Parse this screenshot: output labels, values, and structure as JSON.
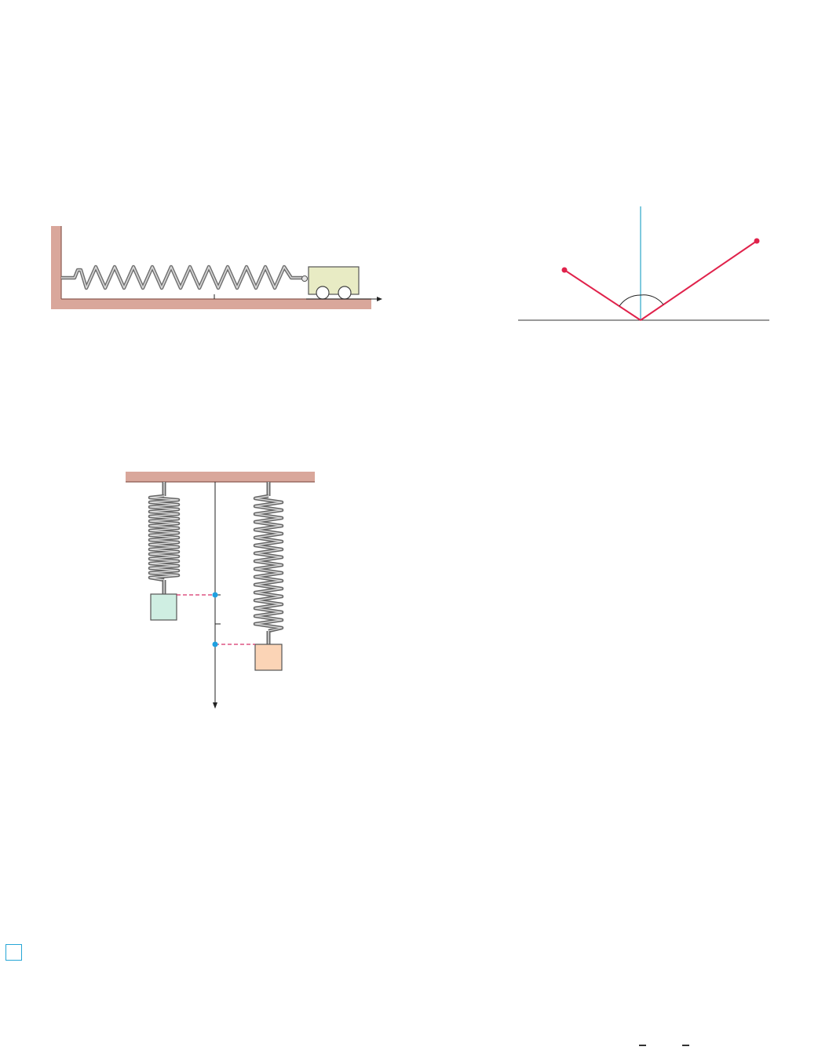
{
  "figures": [
    {
      "id": "horizontal-spring-cart",
      "description_kind": "spring-mass system on floor"
    },
    {
      "id": "reflection-diagram",
      "description_kind": "reflection rays with normal line"
    },
    {
      "id": "hanging-springs",
      "description_kind": "two vertical springs with masses"
    }
  ],
  "colors": {
    "wall_fill": "#d9a79b",
    "wall_edge": "#b07a6c",
    "spring_metal": "#9a9a9a",
    "cart_fill": "#e8ebc4",
    "ray_red": "#e0224b",
    "normal_cyan": "#2ba6c9",
    "point_blue": "#1fa0e0",
    "dashed_magenta": "#d8336a",
    "mass_green": "#cfeee2",
    "mass_orange": "#fbd4b6",
    "marker_cyan": "#26a6d6"
  },
  "icons": [
    "square-marker-icon"
  ]
}
